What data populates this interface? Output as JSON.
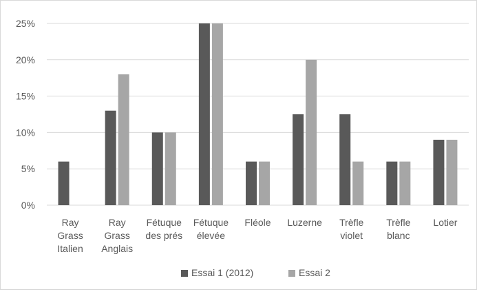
{
  "chart_data": {
    "type": "bar",
    "categories": [
      [
        "Ray",
        "Grass",
        "Italien"
      ],
      [
        "Ray",
        "Grass",
        "Anglais"
      ],
      [
        "Fétuque",
        "des prés"
      ],
      [
        "Fétuque",
        "élevée"
      ],
      [
        "Fléole"
      ],
      [
        "Luzerne"
      ],
      [
        "Trèfle",
        "violet"
      ],
      [
        "Trèfle",
        "blanc"
      ],
      [
        "Lotier"
      ]
    ],
    "series": [
      {
        "name": "Essai 1 (2012)",
        "color": "#595959",
        "values": [
          6,
          13,
          10,
          25,
          6,
          12.5,
          12.5,
          6,
          9
        ]
      },
      {
        "name": "Essai 2",
        "color": "#a6a6a6",
        "values": [
          0,
          18,
          10,
          25,
          6,
          20,
          6,
          6,
          9
        ]
      }
    ],
    "ylim": [
      0,
      25
    ],
    "yticks": [
      0,
      5,
      10,
      15,
      20,
      25
    ],
    "ytick_labels": [
      "0%",
      "5%",
      "10%",
      "15%",
      "20%",
      "25%"
    ],
    "grid": true,
    "legend_position": "bottom",
    "title": "",
    "xlabel": "",
    "ylabel": ""
  }
}
